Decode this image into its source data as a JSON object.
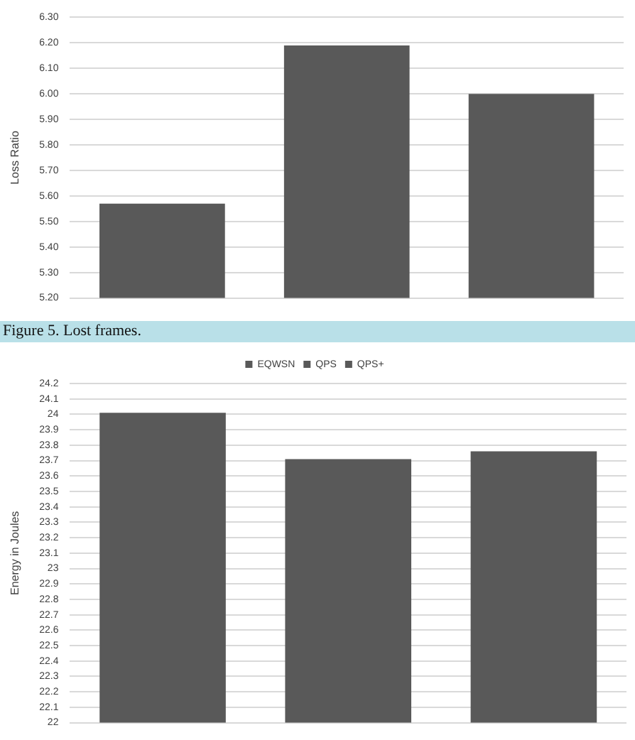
{
  "chart_data": [
    {
      "type": "bar",
      "ylabel": "Loss Ratio",
      "categories": [
        null,
        null,
        null
      ],
      "values": [
        5.57,
        6.19,
        6.0
      ],
      "color": "#595959",
      "ylim": [
        5.2,
        6.3
      ],
      "yticks": [
        {
          "value": 5.2,
          "label": "5.20"
        },
        {
          "value": 5.3,
          "label": "5.30"
        },
        {
          "value": 5.4,
          "label": "5.40"
        },
        {
          "value": 5.5,
          "label": "5.50"
        },
        {
          "value": 5.6,
          "label": "5.60"
        },
        {
          "value": 5.7,
          "label": "5.70"
        },
        {
          "value": 5.8,
          "label": "5.80"
        },
        {
          "value": 5.9,
          "label": "5.90"
        },
        {
          "value": 6.0,
          "label": "6.00"
        },
        {
          "value": 6.1,
          "label": "6.10"
        },
        {
          "value": 6.2,
          "label": "6.20"
        },
        {
          "value": 6.3,
          "label": "6.30"
        }
      ],
      "grid": "y",
      "tick_labels": "y",
      "annotations": [
        "Figure 5. Lost frames."
      ]
    },
    {
      "type": "bar",
      "ylabel": "Energy in Joules",
      "categories": [
        null,
        null,
        null
      ],
      "series": [
        {
          "name": "EQWSN",
          "color": "#595959",
          "values": [
            24.01,
            null,
            null
          ]
        },
        {
          "name": "QPS",
          "color": "#595959",
          "values": [
            null,
            23.71,
            null
          ]
        },
        {
          "name": "QPS+",
          "color": "#595959",
          "values": [
            null,
            null,
            23.76
          ]
        }
      ],
      "ylim": [
        22,
        24.2
      ],
      "yticks": [
        22,
        22.1,
        22.2,
        22.3,
        22.4,
        22.5,
        22.6,
        22.7,
        22.8,
        22.9,
        23,
        23.1,
        23.2,
        23.3,
        23.4,
        23.5,
        23.6,
        23.7,
        23.8,
        23.9,
        24,
        24.1,
        24.2
      ],
      "grid": "y",
      "tick_labels": "y",
      "legend": "top"
    }
  ]
}
